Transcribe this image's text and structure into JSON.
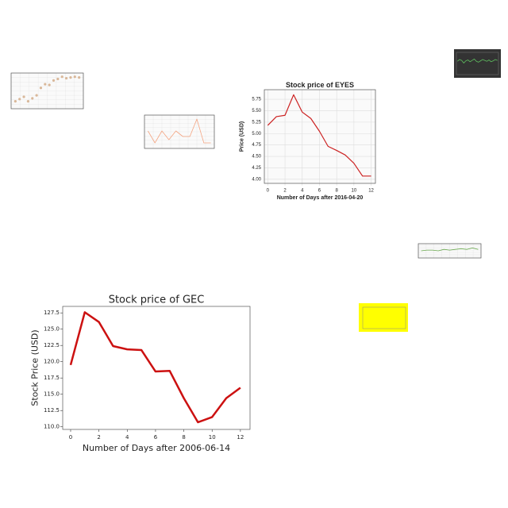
{
  "chart_data": [
    {
      "type": "line",
      "title": "Stock price of EYES",
      "xlabel": "Number of Days after 2016-04-20",
      "ylabel": "Price (USD)",
      "x": [
        0,
        1,
        2,
        3,
        4,
        5,
        6,
        7,
        8,
        9,
        10,
        11,
        12
      ],
      "values": [
        5.18,
        5.37,
        5.4,
        5.85,
        5.47,
        5.33,
        5.05,
        4.72,
        4.63,
        4.53,
        4.35,
        4.07,
        4.07
      ],
      "xlim": [
        -0.4,
        12.5
      ],
      "ylim": [
        3.91,
        5.96
      ],
      "xticks": [
        0,
        2,
        4,
        6,
        8,
        10,
        12
      ],
      "yticks": [
        {
          "value": 4,
          "label": "4.00"
        },
        {
          "value": 4.25,
          "label": "4.25"
        },
        {
          "value": 4.5,
          "label": "4.50"
        },
        {
          "value": 4.75,
          "label": "4.75"
        },
        {
          "value": 5,
          "label": "5.00"
        },
        {
          "value": 5.25,
          "label": "5.25"
        },
        {
          "value": 5.5,
          "label": "5.50"
        },
        {
          "value": 5.75,
          "label": "5.75"
        }
      ],
      "grid": true,
      "color": "#cc2222"
    },
    {
      "type": "line",
      "title": "Stock price of GEC",
      "xlabel": "Number of Days after 2006-06-14",
      "ylabel": "Stock Price (USD)",
      "x": [
        0,
        1,
        2,
        3,
        4,
        5,
        6,
        7,
        8,
        9,
        10,
        11,
        12
      ],
      "values": [
        119.5,
        127.6,
        126.1,
        122.4,
        121.9,
        121.8,
        118.5,
        118.6,
        114.4,
        110.7,
        111.5,
        114.4,
        116.0
      ],
      "xlim": [
        -0.56,
        12.68
      ],
      "ylim": [
        109.6,
        128.5
      ],
      "xticks": [
        0,
        2,
        4,
        6,
        8,
        10,
        12
      ],
      "yticks": [
        {
          "value": 110,
          "label": "110.0"
        },
        {
          "value": 112.5,
          "label": "112.5"
        },
        {
          "value": 115,
          "label": "115.0"
        },
        {
          "value": 117.5,
          "label": "117.5"
        },
        {
          "value": 120,
          "label": "120.0"
        },
        {
          "value": 122.5,
          "label": "122.5"
        },
        {
          "value": 125,
          "label": "125.0"
        },
        {
          "value": 127.5,
          "label": "127.5"
        }
      ],
      "grid": false,
      "color": "#cc1111"
    },
    {
      "type": "scatter",
      "x": [
        0,
        1,
        2,
        3,
        4,
        5,
        6,
        7,
        8,
        9,
        10,
        11,
        12,
        13,
        14,
        15
      ],
      "values": [
        10,
        13,
        16,
        10,
        14,
        18,
        28,
        33,
        32,
        38,
        40,
        43,
        41,
        42,
        43,
        42
      ],
      "xlim": [
        -1,
        16
      ],
      "ylim": [
        0,
        48
      ],
      "grid": true,
      "color": "#d9b89a"
    },
    {
      "type": "line",
      "x": [
        0,
        1,
        2,
        3,
        4,
        5,
        6,
        7,
        8,
        9
      ],
      "values": [
        22,
        7,
        22,
        11,
        22,
        15,
        15,
        37,
        7,
        7
      ],
      "xlim": [
        -0.5,
        9.5
      ],
      "ylim": [
        0,
        42
      ],
      "grid": true,
      "color": "#f4a582"
    },
    {
      "type": "line",
      "x": [
        0,
        1,
        2,
        3,
        4,
        5,
        6,
        7,
        8,
        9,
        10,
        11,
        12,
        13,
        14,
        15,
        16,
        17,
        18,
        19
      ],
      "values": [
        70,
        74,
        72,
        66,
        71,
        73,
        69,
        72,
        75,
        70,
        68,
        71,
        74,
        72,
        70,
        73,
        69,
        71,
        74,
        72
      ],
      "xlim": [
        -0.5,
        19.5
      ],
      "ylim": [
        40,
        90
      ],
      "grid": false,
      "color": "#5fbf5f",
      "background": "#333333"
    },
    {
      "type": "line",
      "x": [
        0,
        1,
        2,
        3,
        4,
        5,
        6,
        7,
        8,
        9,
        10
      ],
      "values": [
        10,
        11,
        11,
        10,
        12,
        11,
        12,
        13,
        12,
        14,
        12
      ],
      "xlim": [
        -0.5,
        10.5
      ],
      "ylim": [
        0,
        20
      ],
      "grid": true,
      "color": "#6aa84f"
    }
  ]
}
